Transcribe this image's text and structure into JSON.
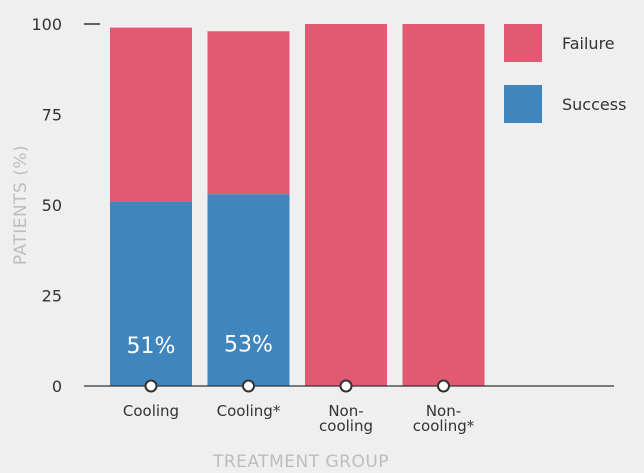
{
  "chart_data": {
    "type": "bar",
    "stacked": true,
    "categories": [
      "Cooling",
      "Cooling*",
      "Non-\ncooling",
      "Non-\ncooling*"
    ],
    "series": [
      {
        "name": "Success",
        "values": [
          51,
          53,
          0,
          0
        ],
        "color": "#3f86bf",
        "labels": [
          "51%",
          "53%",
          "",
          ""
        ]
      },
      {
        "name": "Failure",
        "values": [
          48,
          45,
          100,
          100
        ],
        "color": "#e05a72"
      }
    ],
    "xlabel": "TREATMENT GROUP",
    "ylabel": "PATIENTS (%)",
    "ylim": [
      0,
      100
    ],
    "yticks": [
      0,
      25,
      50,
      75,
      100
    ],
    "legend_position": "right",
    "grid": false
  }
}
